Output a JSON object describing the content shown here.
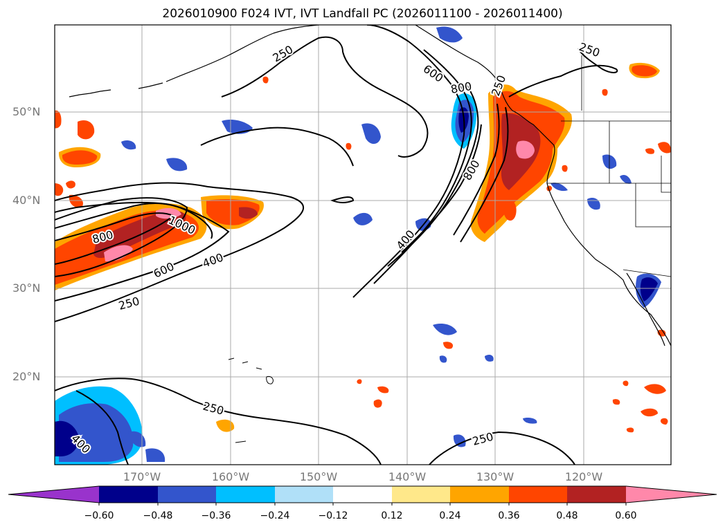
{
  "title": "2026010900 F024 IVT, IVT Landfall PC (2026011100 - 2026011400)",
  "map": {
    "lat_labels": [
      "50°N",
      "40°N",
      "30°N",
      "20°N"
    ],
    "lon_labels": [
      "170°W",
      "160°W",
      "150°W",
      "140°W",
      "130°W",
      "120°W"
    ],
    "contour_labels": [
      "250",
      "250",
      "600",
      "800",
      "250",
      "800",
      "1000",
      "600",
      "400",
      "250",
      "400",
      "800",
      "250",
      "400",
      "250"
    ]
  },
  "colorbar": {
    "labels": [
      "−0.60",
      "−0.48",
      "−0.36",
      "−0.24",
      "−0.12",
      "0.12",
      "0.24",
      "0.36",
      "0.48",
      "0.60"
    ],
    "colors": [
      "#9933cc",
      "#00008b",
      "#3355cc",
      "#00bfff",
      "#b0e0f8",
      "#ffffff",
      "#ffe88a",
      "#ffa500",
      "#ff4500",
      "#b22222",
      "#ff88aa"
    ]
  }
}
